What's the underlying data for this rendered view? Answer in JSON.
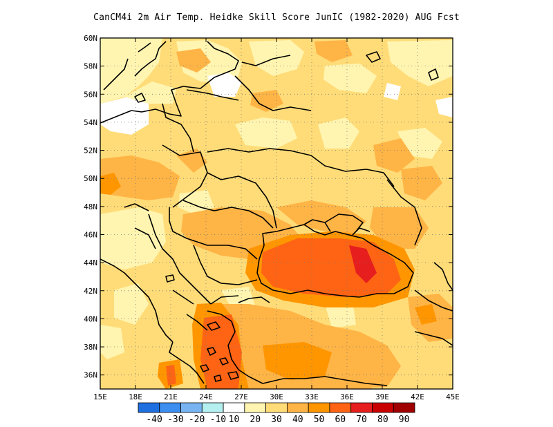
{
  "title": "CanCM4i  2m Air Temp. Heidke Skill Score JunIC (1982-2020) AUG Fcst",
  "map": {
    "lon_range": [
      15,
      45
    ],
    "lat_range": [
      35,
      60
    ],
    "x_ticks": [
      "15E",
      "18E",
      "21E",
      "24E",
      "27E",
      "30E",
      "33E",
      "36E",
      "39E",
      "42E",
      "45E"
    ],
    "y_ticks": [
      "36N",
      "38N",
      "40N",
      "42N",
      "44N",
      "46N",
      "48N",
      "50N",
      "52N",
      "54N",
      "56N",
      "58N",
      "60N"
    ],
    "grid": true,
    "grid_style": "dotted"
  },
  "colorbar": {
    "labels": [
      "-40",
      "-30",
      "-20",
      "-10",
      "10",
      "20",
      "30",
      "40",
      "50",
      "60",
      "70",
      "80",
      "90"
    ],
    "colors": [
      "#1e6fe0",
      "#3c8ef0",
      "#78b4f2",
      "#b4f0f0",
      "#ffffff",
      "#fff5b0",
      "#ffdc78",
      "#ffb446",
      "#ff9600",
      "#ff6414",
      "#e61e1e",
      "#c80000",
      "#a00000"
    ]
  }
}
